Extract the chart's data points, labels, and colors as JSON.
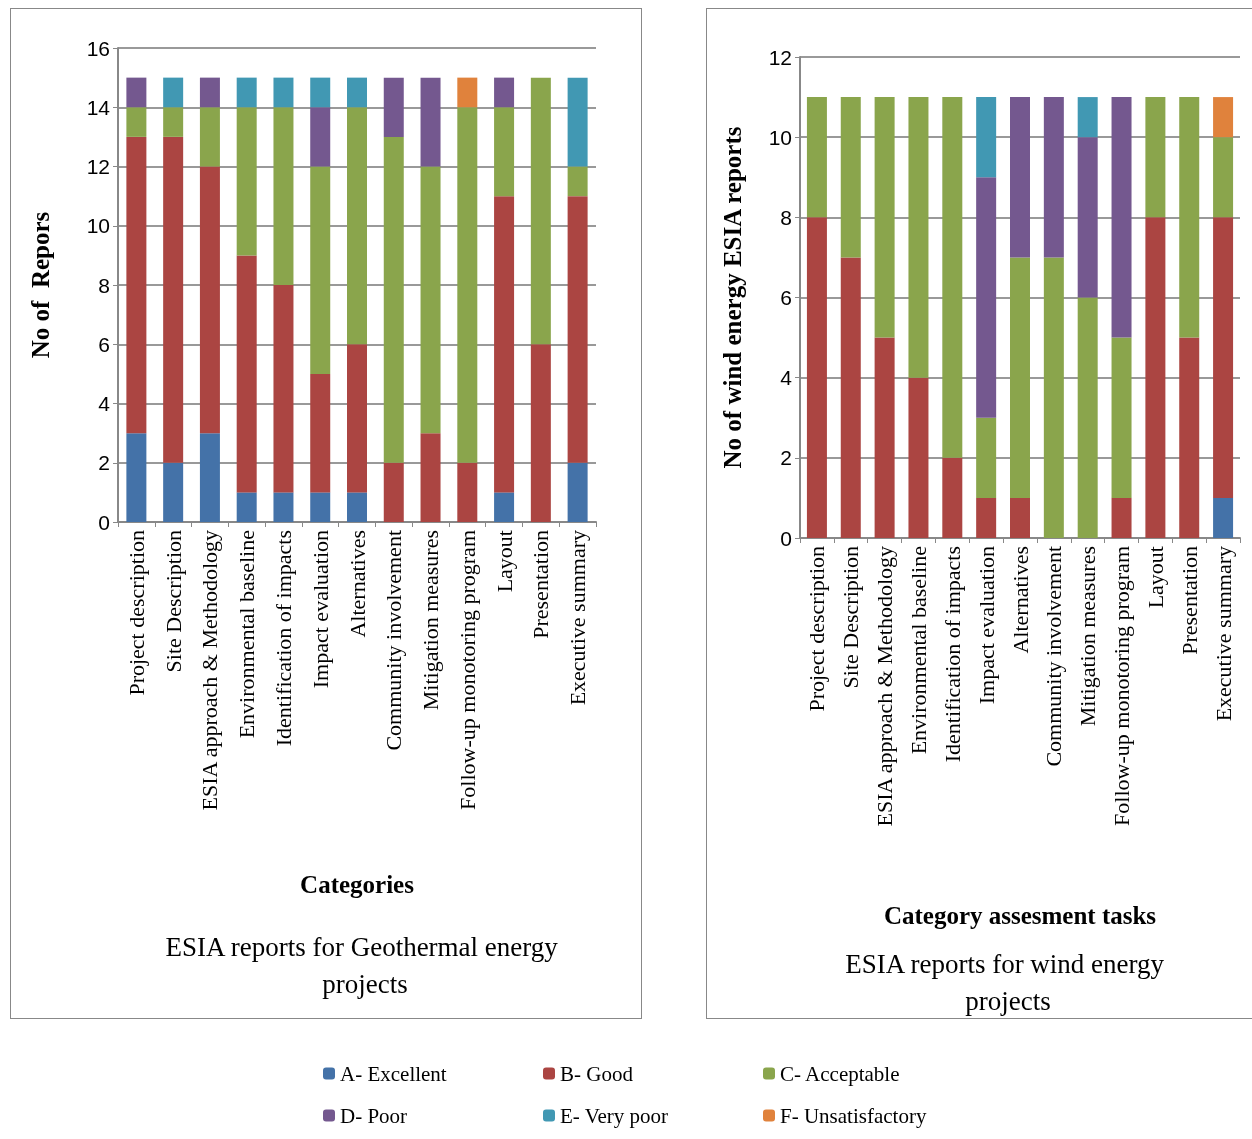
{
  "chart_data": [
    {
      "type": "bar",
      "stacked": true,
      "title": "ESIA reports for Geothermal energy projects",
      "xlabel": "Categories",
      "ylabel": "No of  Repors",
      "categories": [
        "Project description",
        "Site Description",
        "ESIA approach & Methodology",
        "Environmental baseline",
        "Identification of impacts",
        "Impact evaluation",
        "Alternatives",
        "Community involvement",
        "Mitigation measures",
        "Follow-up monotoring program",
        "Layout",
        "Presentation",
        "Executive summary"
      ],
      "series": [
        {
          "color": "#4472a8",
          "values": [
            3,
            2,
            3,
            1,
            1,
            1,
            1,
            0,
            0,
            0,
            1,
            0,
            2
          ]
        },
        {
          "color": "#ab4542",
          "values": [
            10,
            11,
            9,
            8,
            7,
            4,
            5,
            2,
            3,
            2,
            10,
            6,
            9
          ]
        },
        {
          "color": "#8aa54c",
          "values": [
            1,
            1,
            2,
            5,
            6,
            7,
            8,
            11,
            9,
            12,
            3,
            9,
            1
          ]
        },
        {
          "color": "#74588f",
          "values": [
            1,
            0,
            1,
            0,
            0,
            2,
            0,
            2,
            3,
            0,
            1,
            0,
            0
          ]
        },
        {
          "color": "#4198b3",
          "values": [
            0,
            1,
            0,
            1,
            1,
            1,
            1,
            0,
            0,
            0,
            0,
            0,
            3
          ]
        },
        {
          "color": "#e0823c",
          "values": [
            0,
            0,
            0,
            0,
            0,
            0,
            0,
            0,
            0,
            1,
            0,
            0,
            0
          ]
        }
      ],
      "ylim": [
        0,
        16
      ],
      "yticks": [
        0,
        2,
        4,
        6,
        8,
        10,
        12,
        14,
        16
      ],
      "grid": "y"
    },
    {
      "type": "bar",
      "stacked": true,
      "title": "ESIA reports for wind energy projects",
      "xlabel": "Category assesment tasks",
      "ylabel": "No of wind energy ESIA reports",
      "categories": [
        "Project description",
        "Site Description",
        "ESIA approach & Methodology",
        "Environmental baseline",
        "Identification of impacts",
        "Impact evaluation",
        "Alternatives",
        "Community involvement",
        "Mitigation measures",
        "Follow-up monotoring program",
        "Layout",
        "Presentation",
        "Executive summary"
      ],
      "series": [
        {
          "name": "A- Excellent",
          "color": "#4472a8",
          "values": [
            0,
            0,
            0,
            0,
            0,
            0,
            0,
            0,
            0,
            0,
            0,
            0,
            1
          ]
        },
        {
          "name": "B- Good",
          "color": "#ab4542",
          "values": [
            8,
            7,
            5,
            4,
            2,
            1,
            1,
            0,
            0,
            1,
            8,
            5,
            7
          ]
        },
        {
          "name": "C- Acceptable",
          "color": "#8aa54c",
          "values": [
            3,
            4,
            6,
            7,
            9,
            2,
            6,
            7,
            6,
            4,
            3,
            6,
            2
          ]
        },
        {
          "name": "D- Poor",
          "color": "#74588f",
          "values": [
            0,
            0,
            0,
            0,
            0,
            6,
            4,
            4,
            4,
            6,
            0,
            0,
            0
          ]
        },
        {
          "name": "E- Very poor",
          "color": "#4198b3",
          "values": [
            0,
            0,
            0,
            0,
            0,
            2,
            0,
            0,
            1,
            0,
            0,
            0,
            0
          ]
        },
        {
          "name": "F- Unsatisfactory",
          "color": "#e0823c",
          "values": [
            0,
            0,
            0,
            0,
            0,
            0,
            0,
            0,
            0,
            0,
            0,
            0,
            1
          ]
        }
      ],
      "ylim": [
        0,
        12
      ],
      "yticks": [
        0,
        2,
        4,
        6,
        8,
        10,
        12
      ],
      "grid": "y",
      "legend": "bottom"
    }
  ]
}
